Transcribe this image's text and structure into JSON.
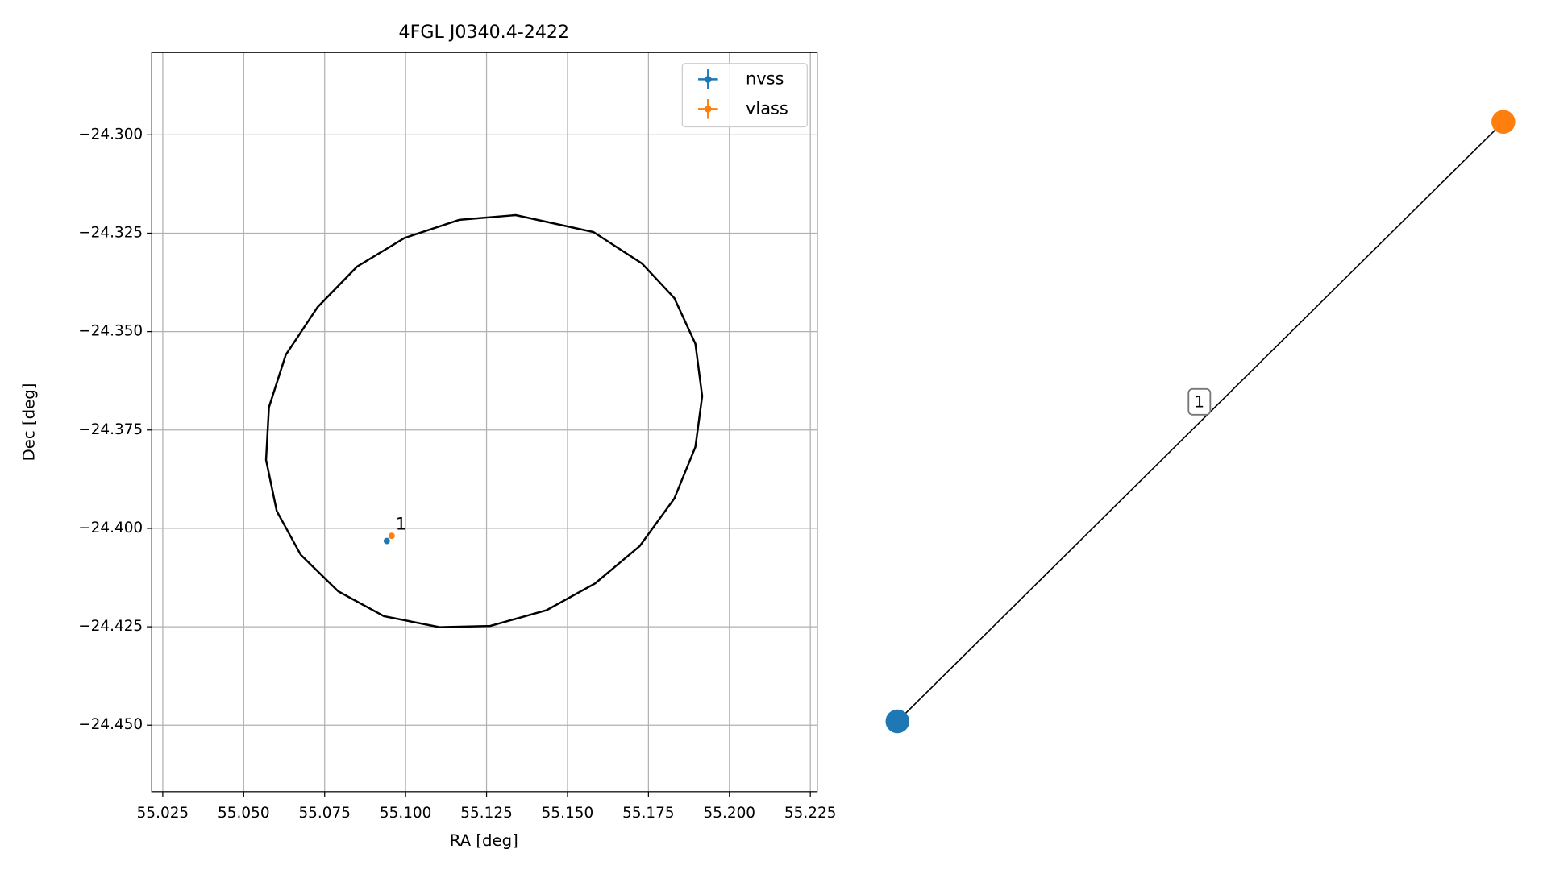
{
  "chart_data": [
    {
      "type": "scatter",
      "title": "4FGL J0340.4-2422",
      "xlabel": "RA [deg]",
      "ylabel": "Dec [deg]",
      "xlim": [
        55.0216,
        55.2271
      ],
      "ylim": [
        -24.4669,
        -24.2791
      ],
      "xticks": [
        {
          "value": 55.025,
          "label": "55.025"
        },
        {
          "value": 55.05,
          "label": "55.050"
        },
        {
          "value": 55.075,
          "label": "55.075"
        },
        {
          "value": 55.1,
          "label": "55.100"
        },
        {
          "value": 55.125,
          "label": "55.125"
        },
        {
          "value": 55.15,
          "label": "55.150"
        },
        {
          "value": 55.175,
          "label": "55.175"
        },
        {
          "value": 55.2,
          "label": "55.200"
        },
        {
          "value": 55.225,
          "label": "55.225"
        }
      ],
      "yticks": [
        {
          "value": -24.3,
          "label": "−24.300"
        },
        {
          "value": -24.325,
          "label": "−24.325"
        },
        {
          "value": -24.35,
          "label": "−24.350"
        },
        {
          "value": -24.375,
          "label": "−24.375"
        },
        {
          "value": -24.4,
          "label": "−24.400"
        },
        {
          "value": -24.425,
          "label": "−24.425"
        },
        {
          "value": -24.45,
          "label": "−24.450"
        }
      ],
      "grid": true,
      "legend": "upper right",
      "series": [
        {
          "name": "nvss",
          "color": "#1f77b4",
          "x": [
            55.0942
          ],
          "values": [
            -24.4032
          ]
        },
        {
          "name": "vlass",
          "color": "#ff7f0e",
          "x": [
            55.0957
          ],
          "values": [
            -24.4019
          ]
        }
      ],
      "annotations": [
        {
          "text": "1",
          "x": 55.0957,
          "y": -24.4019
        }
      ],
      "ellipse": {
        "color": "#000000",
        "x": [
          55.134,
          55.158,
          55.173,
          55.183,
          55.1895,
          55.1916,
          55.1895,
          55.183,
          55.1723,
          55.1585,
          55.1435,
          55.1261,
          55.1105,
          55.0933,
          55.0792,
          55.0676,
          55.0602,
          55.0569,
          55.0578,
          55.063,
          55.0728,
          55.085,
          55.0997,
          55.1166
        ],
        "y": [
          -24.3204,
          -24.3247,
          -24.3327,
          -24.3415,
          -24.3531,
          -24.3664,
          -24.3793,
          -24.3924,
          -24.4045,
          -24.414,
          -24.4208,
          -24.4248,
          -24.4251,
          -24.4223,
          -24.416,
          -24.4067,
          -24.3956,
          -24.3826,
          -24.3692,
          -24.3559,
          -24.3438,
          -24.3335,
          -24.3262,
          -24.3216
        ]
      }
    },
    {
      "type": "network",
      "node_colors": [
        "#1f77b4",
        "#ff7f0e"
      ],
      "edge_labels": [
        "1"
      ]
    }
  ]
}
